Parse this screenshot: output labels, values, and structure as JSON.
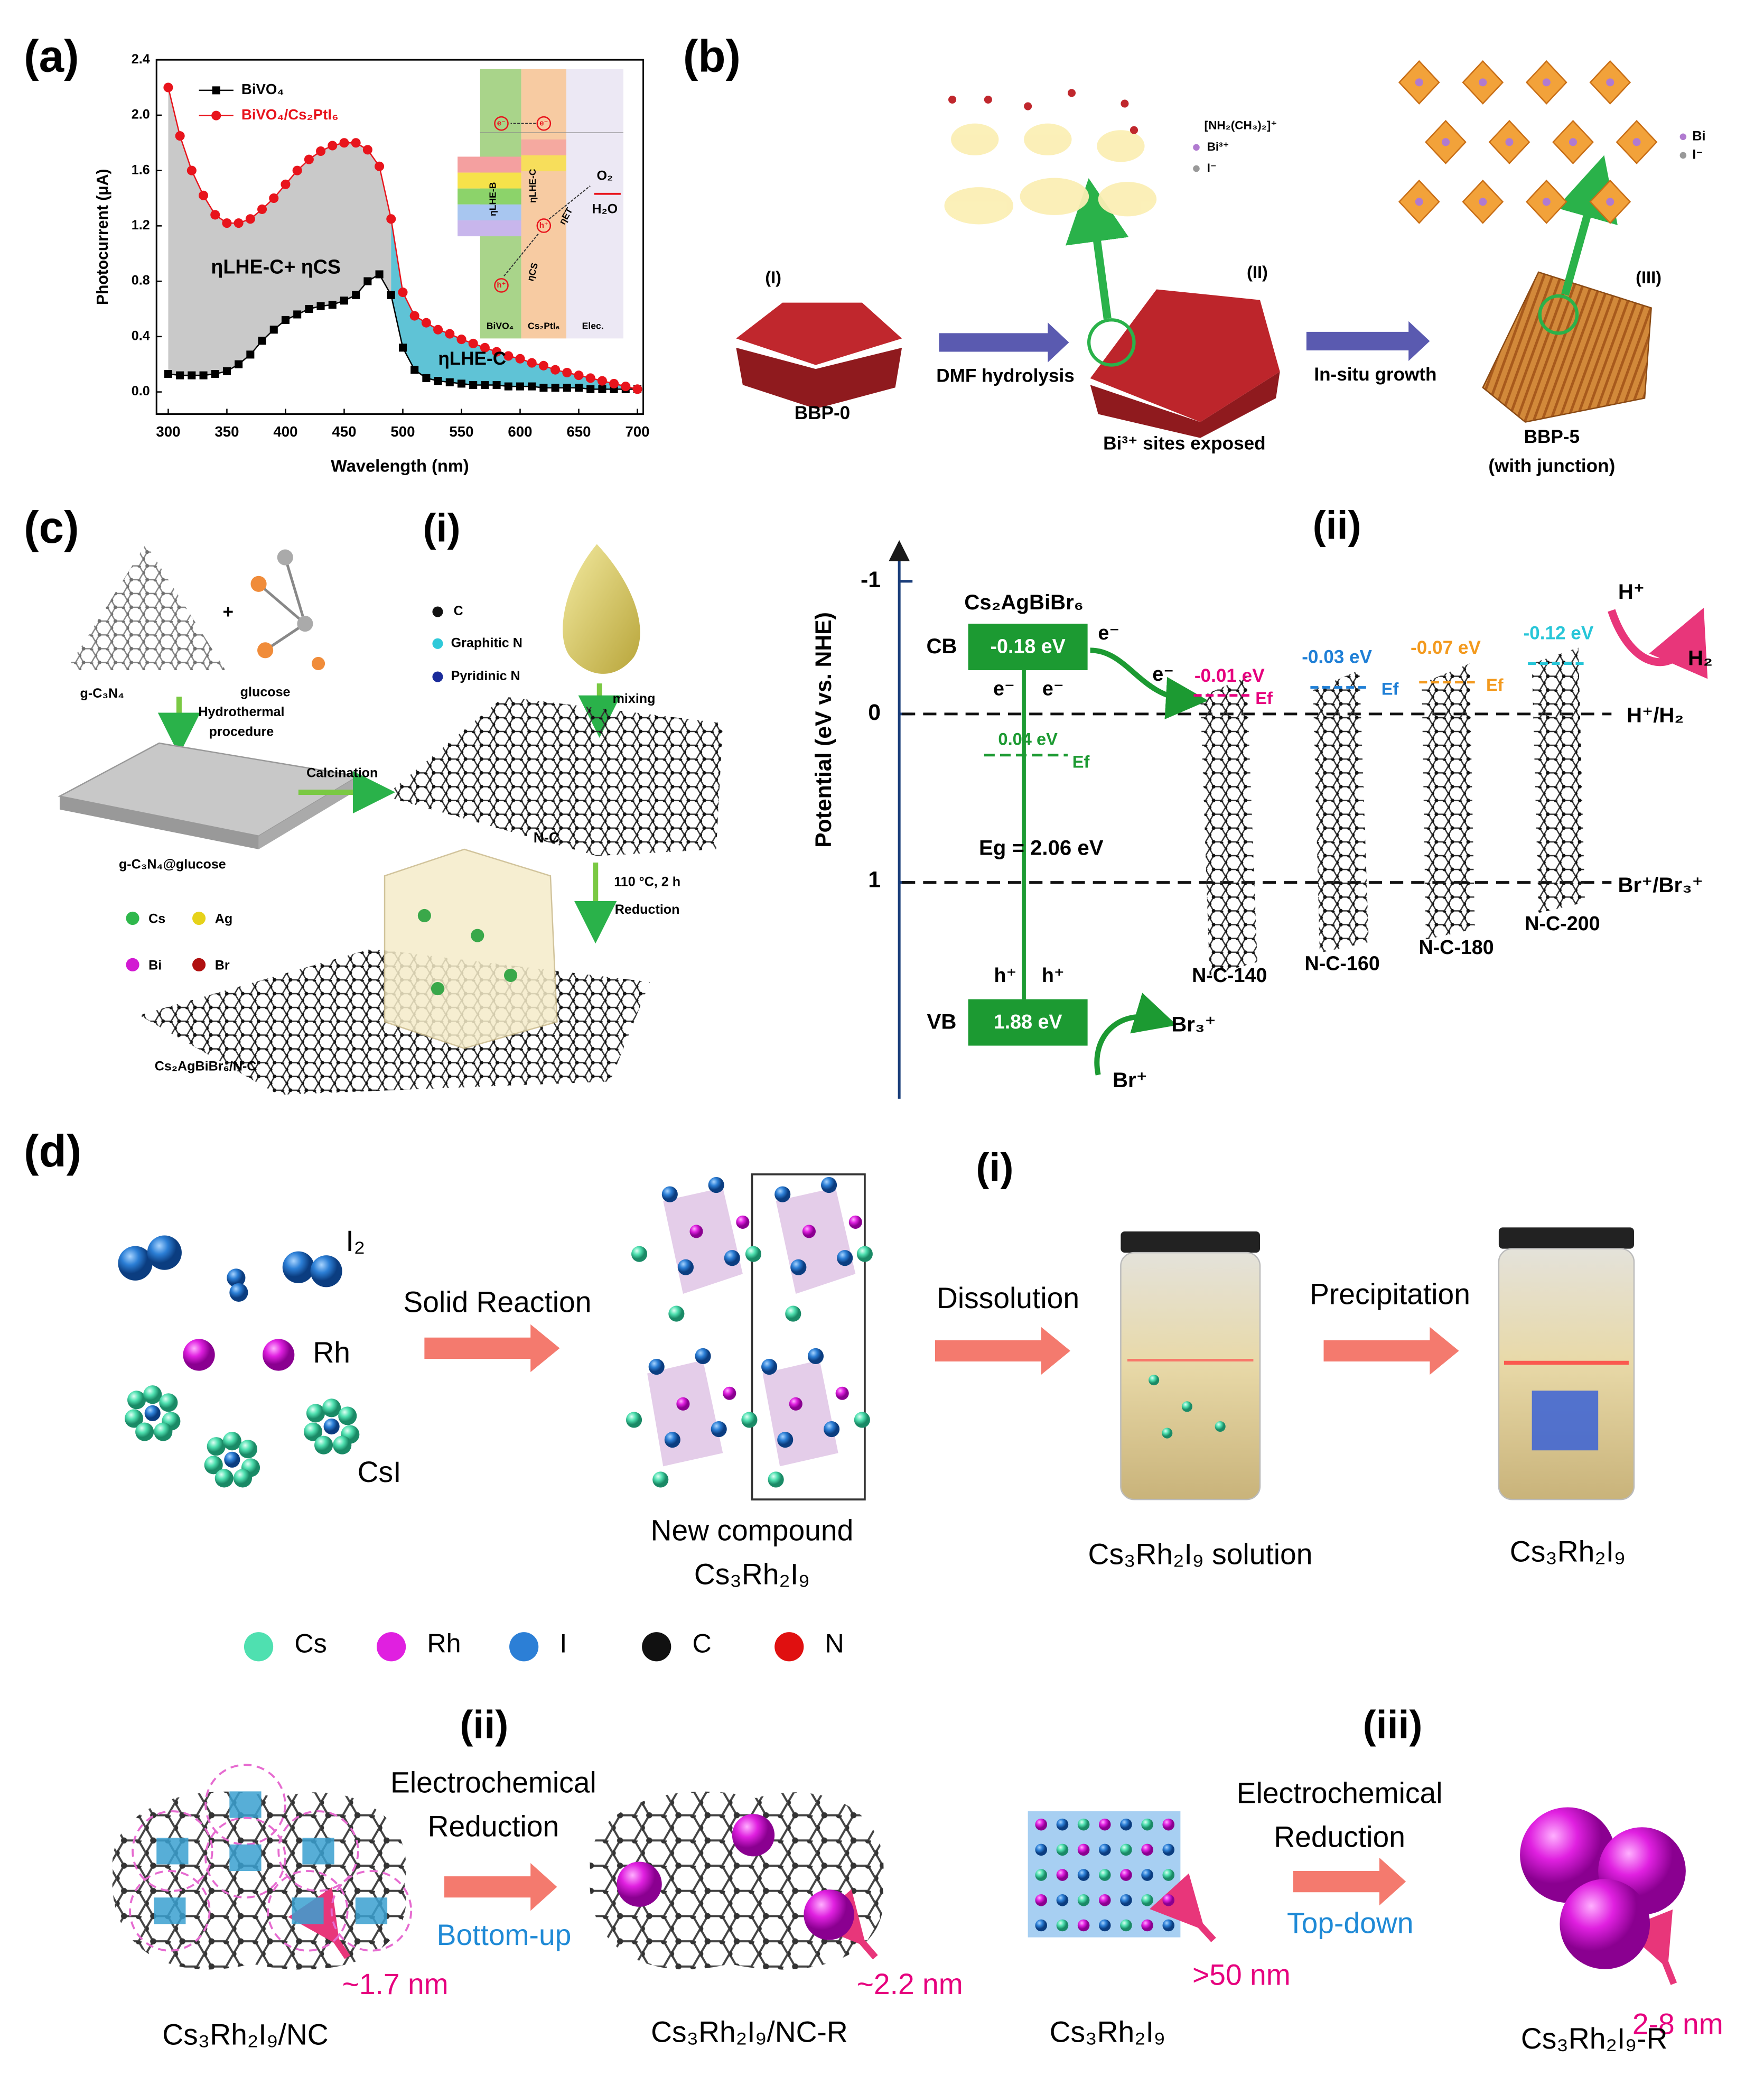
{
  "chart_data": {
    "type": "line",
    "x_label": "Wavelength (nm)",
    "y_label": "Photocurrent (μA)",
    "x": [
      300,
      310,
      320,
      330,
      340,
      350,
      360,
      370,
      380,
      390,
      400,
      410,
      420,
      430,
      440,
      450,
      460,
      470,
      480,
      490,
      500,
      510,
      520,
      530,
      540,
      550,
      560,
      570,
      580,
      590,
      600,
      610,
      620,
      630,
      640,
      650,
      660,
      670,
      680,
      690,
      700
    ],
    "series": [
      {
        "name": "BiVO₄",
        "color": "#000000",
        "marker": "square",
        "values": [
          0.13,
          0.12,
          0.12,
          0.12,
          0.13,
          0.15,
          0.2,
          0.27,
          0.37,
          0.45,
          0.52,
          0.56,
          0.6,
          0.62,
          0.63,
          0.66,
          0.7,
          0.8,
          0.85,
          0.7,
          0.32,
          0.16,
          0.1,
          0.08,
          0.07,
          0.06,
          0.05,
          0.05,
          0.05,
          0.04,
          0.04,
          0.04,
          0.03,
          0.03,
          0.03,
          0.03,
          0.02,
          0.02,
          0.02,
          0.02,
          0.02
        ]
      },
      {
        "name": "BiVO₄/Cs₂PtI₆",
        "color": "#e8141c",
        "marker": "circle",
        "values": [
          2.2,
          1.85,
          1.6,
          1.42,
          1.28,
          1.22,
          1.22,
          1.25,
          1.32,
          1.4,
          1.5,
          1.6,
          1.68,
          1.74,
          1.78,
          1.8,
          1.8,
          1.75,
          1.63,
          1.25,
          0.72,
          0.55,
          0.5,
          0.45,
          0.42,
          0.38,
          0.35,
          0.32,
          0.29,
          0.26,
          0.24,
          0.21,
          0.19,
          0.16,
          0.14,
          0.12,
          0.1,
          0.08,
          0.06,
          0.04,
          0.02
        ]
      }
    ],
    "fills": [
      "#c9c9c9",
      "#5fc3d6"
    ],
    "annotations": [
      "ηLHE-C+ ηCS",
      "ηLHE-C"
    ],
    "xlim": [
      290,
      705
    ],
    "ylim": [
      -0.16,
      2.4
    ],
    "xticks": [
      300,
      350,
      400,
      450,
      500,
      550,
      600,
      650,
      700
    ],
    "yticks": [
      {
        "value": 0,
        "label": "0.0"
      },
      {
        "value": 0.4,
        "label": "0.4"
      },
      {
        "value": 0.8,
        "label": "0.8"
      },
      {
        "value": 1.2,
        "label": "1.2"
      },
      {
        "value": 1.6,
        "label": "1.6"
      },
      {
        "value": 2.0,
        "label": "2.0"
      },
      {
        "value": 2.4,
        "label": "2.4"
      }
    ],
    "legend": "upper left"
  },
  "figure": {
    "panel_a": {
      "label": "(a)",
      "inset": [
        "e⁻",
        "e⁻",
        "h⁺",
        "h⁺",
        "ηLHE-B",
        "ηLHE-C",
        "ηCS",
        "ηET",
        "O₂",
        "H₂O",
        "BiVO₄",
        "Cs₂PtI₆",
        "Elec."
      ]
    },
    "panel_b": {
      "label": "(b)",
      "stages": [
        "(I)",
        "(II)",
        "(III)"
      ],
      "captions": [
        "BBP-0",
        "Bi³⁺ sites exposed",
        "BBP-5",
        "(with junction)"
      ],
      "steps": [
        "DMF hydrolysis",
        "In-situ growth"
      ],
      "legend_left": [
        "[NH₂(CH₃)₂]⁺",
        "Bi³⁺",
        "I⁻"
      ],
      "legend_right": [
        "Bi",
        "I⁻"
      ]
    },
    "panel_c": {
      "label": "(c)",
      "sub_labels": [
        "(i)",
        "(ii)"
      ],
      "scheme": [
        "g-C₃N₄",
        "+",
        "glucose",
        "Hydrothermal",
        "procedure",
        "g-C₃N₄@glucose",
        "Calcination",
        "N-C",
        "mixing",
        "110 °C, 2 h",
        "Reduction",
        "Cs₂AgBiBr₆/N-C"
      ],
      "legend": [
        "C",
        "Graphitic N",
        "Pyridinic N",
        "Cs",
        "Ag",
        "Bi",
        "Br"
      ],
      "energy": {
        "axis_title": "Potential (eV vs. NHE)",
        "ticks": [
          "-1",
          "0",
          "1"
        ],
        "compound": "Cs₂AgBiBr₆",
        "bands": [
          "CB",
          "-0.18 eV",
          "VB",
          "1.88 eV"
        ],
        "fermi": "0.04 eV",
        "gap": "Eg = 2.06 eV",
        "carriers": [
          "e⁻",
          "e⁻",
          "e⁻",
          "e⁻",
          "h⁺",
          "h⁺"
        ],
        "levels": [
          "H⁺/H₂",
          "Br⁺/Br₃⁺"
        ],
        "products": [
          "H⁺",
          "H₂",
          "Br₃⁺",
          "Br⁺"
        ],
        "ef_labels": [
          "Ef",
          "Ef",
          "Ef",
          "Ef"
        ],
        "samples": [
          {
            "name": "N-C-140",
            "level": "-0.01 eV",
            "color": "#e6007e"
          },
          {
            "name": "N-C-160",
            "level": "-0.03 eV",
            "color": "#1f7fd6"
          },
          {
            "name": "N-C-180",
            "level": "-0.07 eV",
            "color": "#f39a1e"
          },
          {
            "name": "N-C-200",
            "level": "-0.12 eV",
            "color": "#27c6d8"
          }
        ]
      }
    },
    "panel_d": {
      "label": "(d)",
      "sub_labels": [
        "(i)",
        "(ii)",
        "(iii)"
      ],
      "reactants": [
        "I₂",
        "Rh",
        "CsI"
      ],
      "steps": [
        "Solid Reaction",
        "Dissolution",
        "Precipitation"
      ],
      "product": [
        "New compound",
        "Cs₃Rh₂I₉"
      ],
      "vials": [
        "Cs₃Rh₂I₉ solution",
        "Cs₃Rh₂I₉"
      ],
      "legend": [
        {
          "name": "Cs",
          "color": "#4fe0b0"
        },
        {
          "name": "Rh",
          "color": "#e020e0"
        },
        {
          "name": "I",
          "color": "#2c7fd6"
        },
        {
          "name": "C",
          "color": "#111111"
        },
        {
          "name": "N",
          "color": "#e01010"
        }
      ],
      "routes": [
        {
          "step": [
            "Electrochemical",
            "Reduction"
          ],
          "mode": "Bottom-up",
          "sizes": [
            "~1.7 nm",
            "~2.2 nm"
          ],
          "names": [
            "Cs₃Rh₂I₉/NC",
            "Cs₃Rh₂I₉/NC-R"
          ]
        },
        {
          "step": [
            "Electrochemical",
            "Reduction"
          ],
          "mode": "Top-down",
          "sizes": [
            ">50 nm",
            "2-8 nm"
          ],
          "names": [
            "Cs₃Rh₂I₉",
            "Cs₃Rh₂I₉-R"
          ]
        }
      ]
    }
  }
}
